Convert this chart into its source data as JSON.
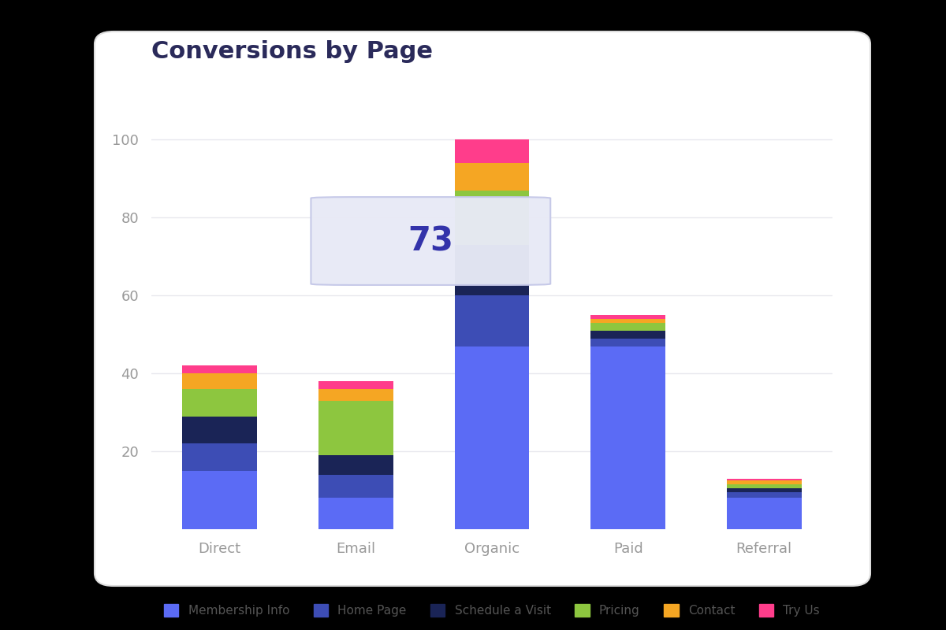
{
  "categories": [
    "Direct",
    "Email",
    "Organic",
    "Paid",
    "Referral"
  ],
  "series": {
    "Membership Info": [
      15,
      8,
      47,
      47,
      8
    ],
    "Home Page": [
      7,
      6,
      13,
      2,
      1.5
    ],
    "Schedule a Visit": [
      7,
      5,
      13,
      2,
      1
    ],
    "Pricing": [
      7,
      14,
      14,
      2,
      1
    ],
    "Contact": [
      4,
      3,
      7,
      1,
      1
    ],
    "Try Us": [
      2,
      2,
      6,
      1,
      0.5
    ]
  },
  "colors": {
    "Membership Info": "#5B6BF5",
    "Home Page": "#3D4DB5",
    "Schedule a Visit": "#1A2456",
    "Pricing": "#8DC63F",
    "Contact": "#F5A623",
    "Try Us": "#FF3D8B"
  },
  "title": "Conversions by Page",
  "ylim": [
    0,
    110
  ],
  "yticks": [
    20,
    40,
    60,
    80,
    100
  ],
  "bar_width": 0.55,
  "outer_bg": "#000000",
  "panel_bg": "#ffffff",
  "grid_color": "#e8e8ee",
  "tooltip_value": "73",
  "tooltip_color": "#3333aa",
  "tooltip_bg": "#e8eaf6",
  "tooltip_border": "#c5c8e8",
  "title_color": "#2a2a5a",
  "tick_color": "#999999"
}
